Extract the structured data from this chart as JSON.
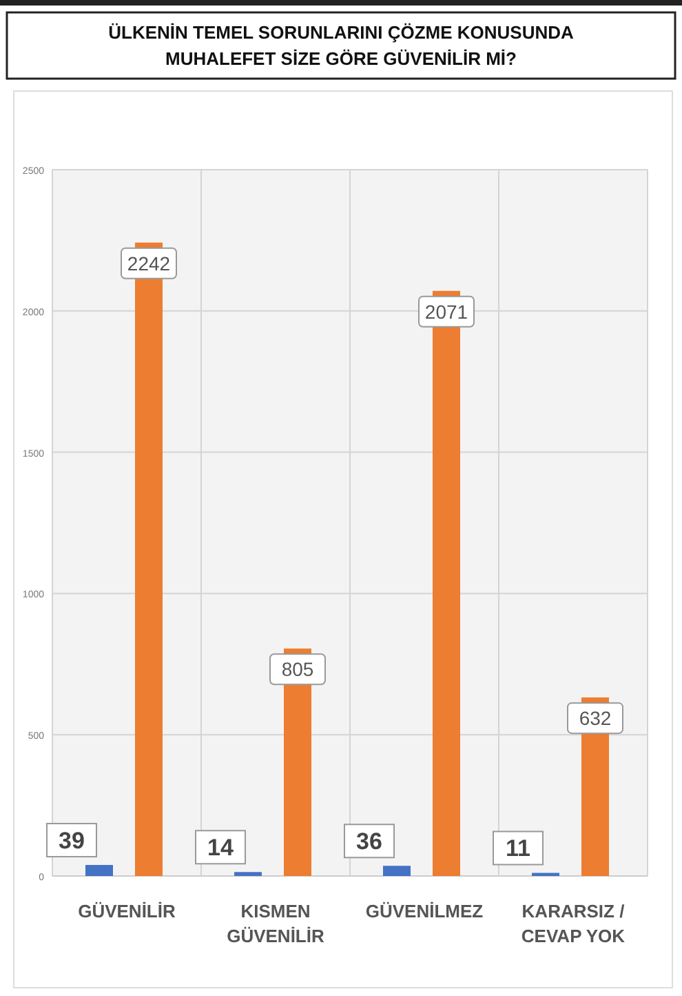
{
  "chart_data": {
    "type": "bar",
    "title": "ÜLKENİN TEMEL SORUNLARINI ÇÖZME KONUSUNDA MUHALEFET SİZE GÖRE GÜVENİLİR Mİ?",
    "categories": [
      "GÜVENİLİR",
      "KISMEN GÜVENİLİR",
      "GÜVENİLMEZ",
      "KARARSIZ / CEVAP YOK"
    ],
    "series": [
      {
        "color": "#4472c4",
        "values": [
          39,
          14,
          36,
          11
        ]
      },
      {
        "color": "#ed7d31",
        "values": [
          2242,
          805,
          2071,
          632
        ]
      }
    ],
    "ylim": [
      0,
      2500
    ],
    "yticks": [
      0,
      500,
      1000,
      1500,
      2000,
      2500
    ],
    "grid": true,
    "data_labels": true
  }
}
